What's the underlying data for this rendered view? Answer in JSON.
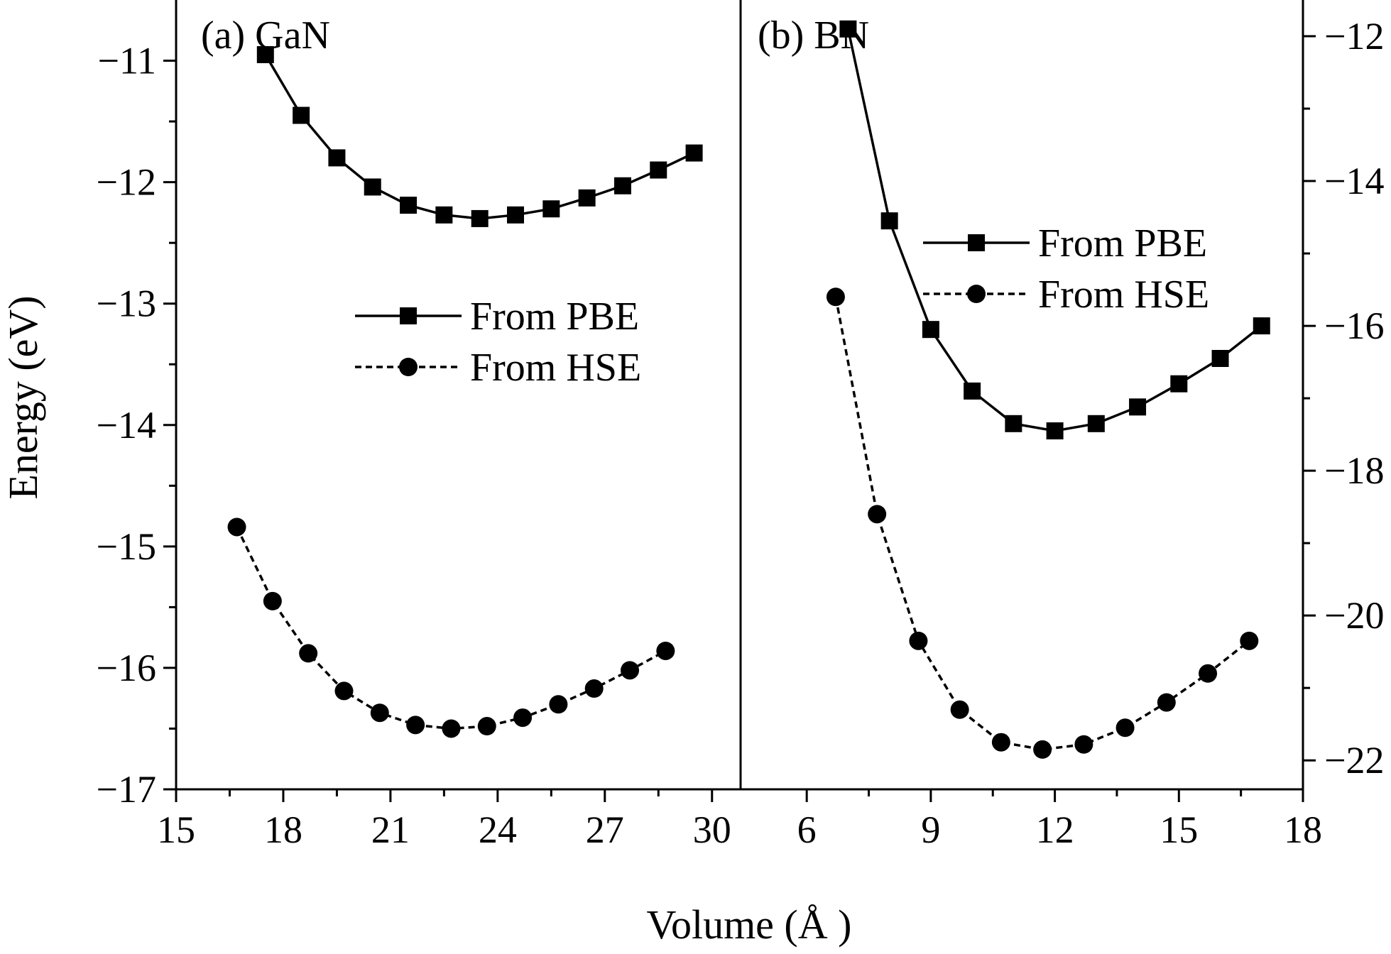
{
  "figure": {
    "ylabel": "Energy (eV)",
    "xlabel": "Volume (Å )"
  },
  "chart_data": [
    {
      "type": "line",
      "panel_label": "(a) GaN",
      "xlim": [
        15,
        30.8
      ],
      "ylim": [
        -17,
        -10.5
      ],
      "x_ticks": [
        15,
        18,
        21,
        24,
        27,
        30
      ],
      "x_tick_labels": [
        "15",
        "18",
        "21",
        "24",
        "27",
        "30"
      ],
      "y_ticks": [
        -17,
        -16,
        -15,
        -14,
        -13,
        -12,
        -11
      ],
      "y_tick_labels": [
        "−17",
        "−16",
        "−15",
        "−14",
        "−13",
        "−12",
        "−11"
      ],
      "legend_position": "center",
      "series": [
        {
          "name": "From PBE",
          "marker": "square",
          "line_style": "solid",
          "points": [
            [
              17.5,
              -10.95
            ],
            [
              18.5,
              -11.45
            ],
            [
              19.5,
              -11.8
            ],
            [
              20.5,
              -12.04
            ],
            [
              21.5,
              -12.19
            ],
            [
              22.5,
              -12.27
            ],
            [
              23.5,
              -12.3
            ],
            [
              24.5,
              -12.27
            ],
            [
              25.5,
              -12.22
            ],
            [
              26.5,
              -12.13
            ],
            [
              27.5,
              -12.03
            ],
            [
              28.5,
              -11.9
            ],
            [
              29.5,
              -11.76
            ]
          ]
        },
        {
          "name": "From HSE",
          "marker": "circle",
          "line_style": "dashed",
          "points": [
            [
              16.7,
              -14.84
            ],
            [
              17.7,
              -15.45
            ],
            [
              18.7,
              -15.88
            ],
            [
              19.7,
              -16.19
            ],
            [
              20.7,
              -16.37
            ],
            [
              21.7,
              -16.47
            ],
            [
              22.7,
              -16.5
            ],
            [
              23.7,
              -16.48
            ],
            [
              24.7,
              -16.41
            ],
            [
              25.7,
              -16.3
            ],
            [
              26.7,
              -16.17
            ],
            [
              27.7,
              -16.02
            ],
            [
              28.7,
              -15.86
            ]
          ]
        }
      ]
    },
    {
      "type": "line",
      "panel_label": "(b) BN",
      "xlim": [
        4.4,
        18
      ],
      "ylim": [
        -22.4,
        -11.5
      ],
      "x_ticks": [
        6,
        9,
        12,
        15,
        18
      ],
      "x_tick_labels": [
        "6",
        "9",
        "12",
        "15",
        "18"
      ],
      "y_ticks": [
        -22,
        -20,
        -18,
        -16,
        -14,
        -12
      ],
      "y_tick_labels": [
        "−22",
        "−20",
        "−18",
        "−16",
        "−14",
        "−12"
      ],
      "y_axis_side": "right",
      "legend_position": "top-right",
      "series": [
        {
          "name": "From PBE",
          "marker": "square",
          "line_style": "solid",
          "points": [
            [
              7.0,
              -11.9
            ],
            [
              8.0,
              -14.55
            ],
            [
              9.0,
              -16.05
            ],
            [
              10.0,
              -16.9
            ],
            [
              11.0,
              -17.35
            ],
            [
              12.0,
              -17.45
            ],
            [
              13.0,
              -17.35
            ],
            [
              14.0,
              -17.12
            ],
            [
              15.0,
              -16.8
            ],
            [
              16.0,
              -16.45
            ],
            [
              17.0,
              -16.0
            ]
          ]
        },
        {
          "name": "From HSE",
          "marker": "circle",
          "line_style": "dashed",
          "points": [
            [
              6.7,
              -15.6
            ],
            [
              7.7,
              -18.6
            ],
            [
              8.7,
              -20.35
            ],
            [
              9.7,
              -21.3
            ],
            [
              10.7,
              -21.75
            ],
            [
              11.7,
              -21.85
            ],
            [
              12.7,
              -21.78
            ],
            [
              13.7,
              -21.55
            ],
            [
              14.7,
              -21.2
            ],
            [
              15.7,
              -20.8
            ],
            [
              16.7,
              -20.35
            ]
          ]
        }
      ]
    }
  ]
}
